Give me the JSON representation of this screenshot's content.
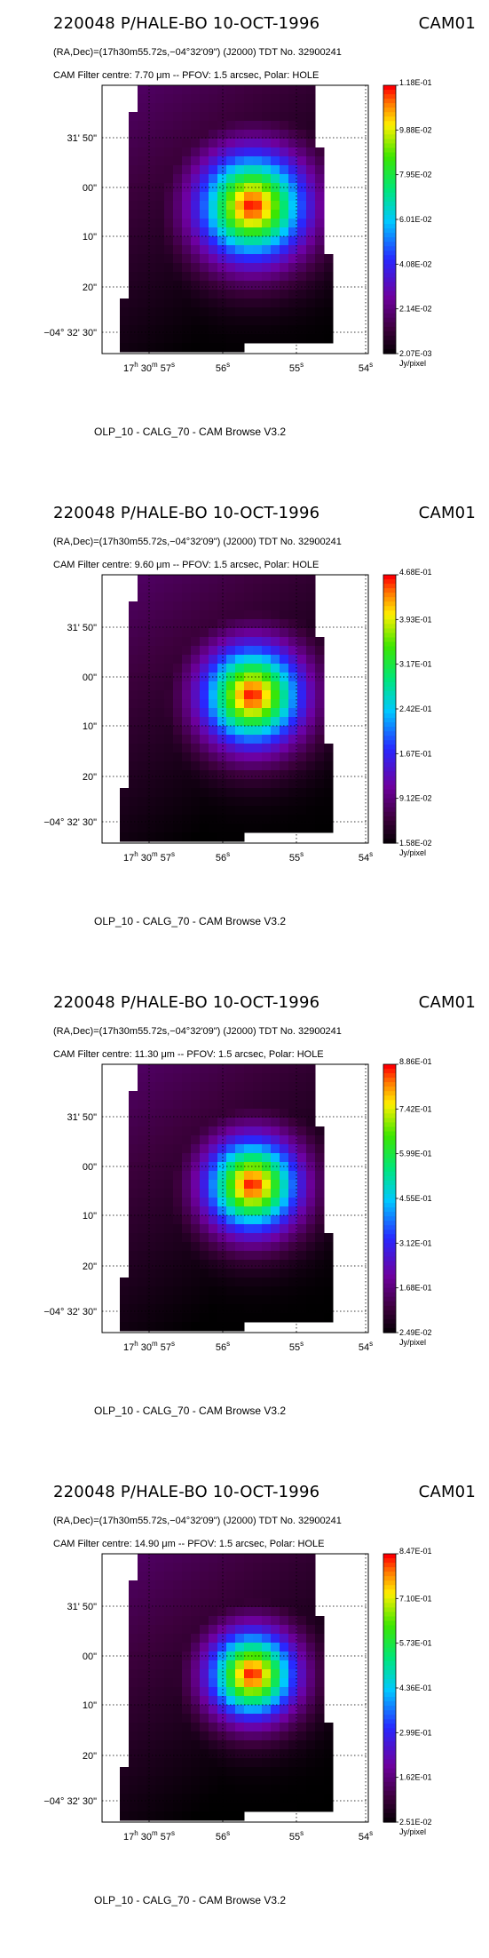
{
  "panels": [
    {
      "title": "220048 P/HALE-BO 10-OCT-1996",
      "instrument": "CAM01",
      "coords_line": "(RA,Dec)=(17h30m55.72s,−04°32'09\") (J2000) TDT No. 32900241",
      "filter_line": "CAM  Filter  centre:  7.70 μm --   PFOV:  1.5 arcsec, Polar: HOLE",
      "colorbar_ticks": [
        "1.18E-01",
        "9.88E-02",
        "7.95E-02",
        "6.01E-02",
        "4.08E-02",
        "2.14E-02",
        "2.07E-03"
      ],
      "unit": "Jy/pixel",
      "footer": "OLP_10    - CALG_70   - CAM Browse V3.2"
    },
    {
      "title": "220048 P/HALE-BO 10-OCT-1996",
      "instrument": "CAM01",
      "coords_line": "(RA,Dec)=(17h30m55.72s,−04°32'09\") (J2000) TDT No. 32900241",
      "filter_line": "CAM  Filter  centre:  9.60 μm --   PFOV:  1.5 arcsec, Polar: HOLE",
      "colorbar_ticks": [
        "4.68E-01",
        "3.93E-01",
        "3.17E-01",
        "2.42E-01",
        "1.67E-01",
        "9.12E-02",
        "1.58E-02"
      ],
      "unit": "Jy/pixel",
      "footer": "OLP_10    - CALG_70   - CAM Browse V3.2"
    },
    {
      "title": "220048 P/HALE-BO 10-OCT-1996",
      "instrument": "CAM01",
      "coords_line": "(RA,Dec)=(17h30m55.72s,−04°32'09\") (J2000) TDT No. 32900241",
      "filter_line": "CAM  Filter  centre: 11.30 μm --   PFOV:  1.5 arcsec, Polar: HOLE",
      "colorbar_ticks": [
        "8.86E-01",
        "7.42E-01",
        "5.99E-01",
        "4.55E-01",
        "3.12E-01",
        "1.68E-01",
        "2.49E-02"
      ],
      "unit": "Jy/pixel",
      "footer": "OLP_10    - CALG_70   - CAM Browse V3.2"
    },
    {
      "title": "220048 P/HALE-BO 10-OCT-1996",
      "instrument": "CAM01",
      "coords_line": "(RA,Dec)=(17h30m55.72s,−04°32'09\") (J2000) TDT No. 32900241",
      "filter_line": "CAM  Filter  centre: 14.90 μm --   PFOV:  1.5 arcsec, Polar: HOLE",
      "colorbar_ticks": [
        "8.47E-01",
        "7.10E-01",
        "5.73E-01",
        "4.36E-01",
        "2.99E-01",
        "1.62E-01",
        "2.51E-02"
      ],
      "unit": "Jy/pixel",
      "footer": "OLP_10    - CALG_70   - CAM Browse V3.2"
    }
  ],
  "chart_data": [
    {
      "type": "heatmap",
      "title": "220048 P/HALE-BO 10-OCT-1996",
      "xlabel": "",
      "ylabel": "",
      "x_ticks": [
        {
          "h": "17",
          "m": "30",
          "s": "57",
          "label": "17h 30m 57s"
        },
        {
          "h": "",
          "m": "",
          "s": "56",
          "label": "56s"
        },
        {
          "h": "",
          "m": "",
          "s": "55",
          "label": "55s"
        },
        {
          "h": "",
          "m": "",
          "s": "54",
          "label": "54s"
        }
      ],
      "y_ticks": [
        {
          "label": "31' 50\"",
          "value": 50
        },
        {
          "label": "00\"",
          "value": 0
        },
        {
          "label": "10\"",
          "value": 10
        },
        {
          "label": "20\"",
          "value": 20
        },
        {
          "label": "−04° 32' 30\"",
          "value": 30
        }
      ],
      "colorbar": {
        "min": 0.00207,
        "max": 0.118,
        "unit": "Jy/pixel"
      },
      "peak_fraction": 1.0
    },
    {
      "type": "heatmap",
      "title": "220048 P/HALE-BO 10-OCT-1996",
      "xlabel": "",
      "ylabel": "",
      "x_ticks": [
        {
          "h": "17",
          "m": "30",
          "s": "57",
          "label": "17h 30m 57s"
        },
        {
          "h": "",
          "m": "",
          "s": "56",
          "label": "56s"
        },
        {
          "h": "",
          "m": "",
          "s": "55",
          "label": "55s"
        },
        {
          "h": "",
          "m": "",
          "s": "54",
          "label": "54s"
        }
      ],
      "y_ticks": [
        {
          "label": "31' 50\"",
          "value": 50
        },
        {
          "label": "00\"",
          "value": 0
        },
        {
          "label": "10\"",
          "value": 10
        },
        {
          "label": "20\"",
          "value": 20
        },
        {
          "label": "−04° 32' 30\"",
          "value": 30
        }
      ],
      "colorbar": {
        "min": 0.0158,
        "max": 0.468,
        "unit": "Jy/pixel"
      },
      "peak_fraction": 1.0
    },
    {
      "type": "heatmap",
      "title": "220048 P/HALE-BO 10-OCT-1996",
      "xlabel": "",
      "ylabel": "",
      "x_ticks": [
        {
          "h": "17",
          "m": "30",
          "s": "57",
          "label": "17h 30m 57s"
        },
        {
          "h": "",
          "m": "",
          "s": "56",
          "label": "56s"
        },
        {
          "h": "",
          "m": "",
          "s": "55",
          "label": "55s"
        },
        {
          "h": "",
          "m": "",
          "s": "54",
          "label": "54s"
        }
      ],
      "y_ticks": [
        {
          "label": "31' 50\"",
          "value": 50
        },
        {
          "label": "00\"",
          "value": 0
        },
        {
          "label": "10\"",
          "value": 10
        },
        {
          "label": "20\"",
          "value": 20
        },
        {
          "label": "−04° 32' 30\"",
          "value": 30
        }
      ],
      "colorbar": {
        "min": 0.0249,
        "max": 0.886,
        "unit": "Jy/pixel"
      },
      "peak_fraction": 1.0
    },
    {
      "type": "heatmap",
      "title": "220048 P/HALE-BO 10-OCT-1996",
      "xlabel": "",
      "ylabel": "",
      "x_ticks": [
        {
          "h": "17",
          "m": "30",
          "s": "57",
          "label": "17h 30m 57s"
        },
        {
          "h": "",
          "m": "",
          "s": "56",
          "label": "56s"
        },
        {
          "h": "",
          "m": "",
          "s": "55",
          "label": "55s"
        },
        {
          "h": "",
          "m": "",
          "s": "54",
          "label": "54s"
        }
      ],
      "y_ticks": [
        {
          "label": "31' 50\"",
          "value": 50
        },
        {
          "label": "00\"",
          "value": 0
        },
        {
          "label": "10\"",
          "value": 10
        },
        {
          "label": "20\"",
          "value": 20
        },
        {
          "label": "−04° 32' 30\"",
          "value": 30
        }
      ],
      "colorbar": {
        "min": 0.0251,
        "max": 0.847,
        "unit": "Jy/pixel"
      },
      "peak_fraction": 1.0
    }
  ]
}
